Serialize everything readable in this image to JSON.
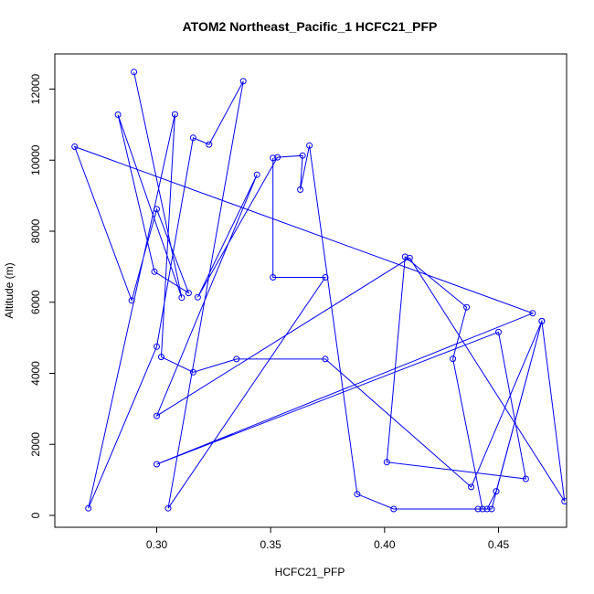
{
  "chart_data": {
    "type": "line",
    "title": "ATOM2 Northeast_Pacific_1 HCFC21_PFP",
    "xlabel": "HCFC21_PFP",
    "ylabel": "Altitude (m)",
    "xlim": [
      0.26,
      0.475
    ],
    "ylim": [
      -500,
      13000
    ],
    "xticks": [
      0.3,
      0.35,
      0.4,
      0.45
    ],
    "xtick_labels": [
      "0.30",
      "0.35",
      "0.40",
      "0.45"
    ],
    "yticks": [
      0,
      2000,
      4000,
      6000,
      8000,
      10000,
      12000
    ],
    "ytick_labels": [
      "0",
      "2000",
      "4000",
      "6000",
      "8000",
      "10000",
      "12000"
    ],
    "color": "#0000ff",
    "markers": "open-circle",
    "grid": false,
    "legend": "none",
    "series": [
      {
        "x": [
          0.29,
          0.311,
          0.283,
          0.299,
          0.314,
          0.3,
          0.289,
          0.264,
          0.465,
          0.3,
          0.45,
          0.462,
          0.401,
          0.409,
          0.436,
          0.43,
          0.443,
          0.447,
          0.469,
          0.449,
          0.445,
          0.441,
          0.404,
          0.388,
          0.367,
          0.363,
          0.364,
          0.353,
          0.318,
          0.344,
          0.3,
          0.411,
          0.479,
          0.469,
          0.438,
          0.374,
          0.335,
          0.316,
          0.302,
          0.308,
          0.27,
          0.3,
          0.316,
          0.323,
          0.338,
          0.305,
          0.374,
          0.351,
          0.351
        ],
        "y": [
          12480,
          6130,
          11280,
          6860,
          6260,
          8620,
          6050,
          10380,
          5690,
          1440,
          5160,
          1030,
          1500,
          7280,
          5860,
          4410,
          180,
          180,
          5470,
          680,
          180,
          180,
          180,
          600,
          10410,
          9170,
          10130,
          10080,
          6140,
          9590,
          2800,
          7250,
          400,
          5470,
          800,
          4400,
          4400,
          4030,
          4460,
          11290,
          200,
          4750,
          10630,
          10440,
          12220,
          200,
          6700,
          6700,
          10060
        ]
      }
    ]
  }
}
